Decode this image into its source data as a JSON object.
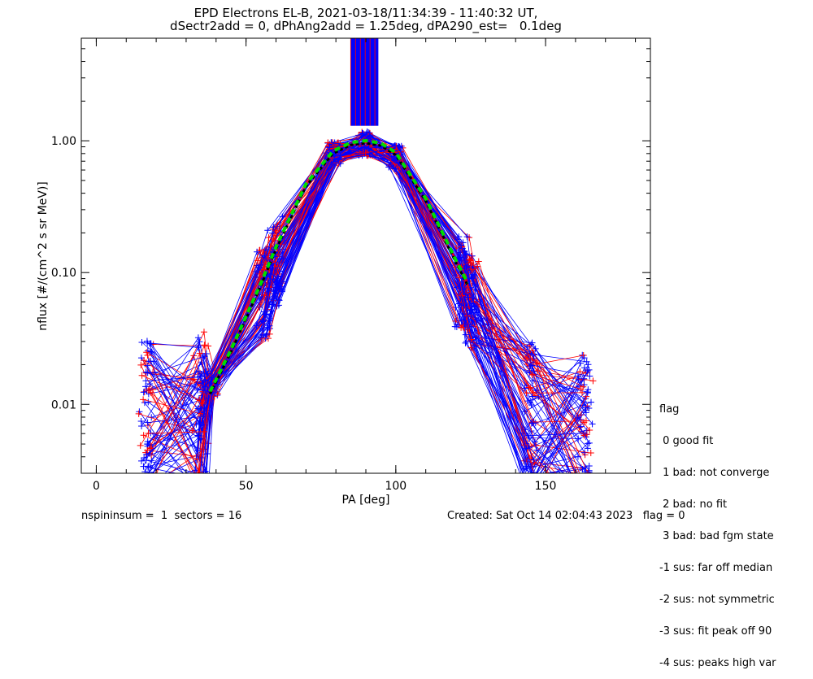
{
  "chart_data": {
    "type": "scatter",
    "title": "EPD Electrons EL-B, 2021-03-18/11:34:39 - 11:40:32 UT,",
    "subtitle": "dSectr2add = 0, dPhAng2add = 1.25deg, dPA290_est=   0.1deg",
    "xlabel": "PA [deg]",
    "ylabel": "nflux [#/(cm^2 s sr MeV)]",
    "xlim": [
      -5,
      185
    ],
    "ylim": [
      0.003,
      6.0
    ],
    "yscale": "log",
    "x_ticks": [
      {
        "value": 0,
        "label": "0"
      },
      {
        "value": 50,
        "label": "50"
      },
      {
        "value": 100,
        "label": "100"
      },
      {
        "value": 150,
        "label": "150"
      }
    ],
    "y_ticks": [
      {
        "value": 0.01,
        "label": "0.01"
      },
      {
        "value": 0.1,
        "label": "0.10"
      },
      {
        "value": 1.0,
        "label": "1.00"
      }
    ],
    "series_colors": {
      "red": "#ff0000",
      "blue": "#0000ff",
      "fit_green": "#00dd00",
      "fit_black": "#000000"
    },
    "typical_profile": {
      "pa": [
        17,
        35,
        38,
        56,
        60,
        79,
        90,
        100,
        122,
        125,
        145,
        163
      ],
      "flux": [
        0.008,
        0.009,
        0.013,
        0.07,
        0.12,
        0.8,
        0.95,
        0.75,
        0.085,
        0.06,
        0.008,
        0.006
      ]
    },
    "fit_curve": {
      "pa": [
        38,
        45,
        55,
        60,
        70,
        79,
        85,
        90,
        95,
        100,
        110,
        120,
        124
      ],
      "flux": [
        0.012,
        0.025,
        0.08,
        0.15,
        0.45,
        0.8,
        0.93,
        0.96,
        0.92,
        0.78,
        0.35,
        0.12,
        0.08
      ]
    },
    "spike_range": {
      "x_from": 85,
      "x_to": 94,
      "y_from": 1.3,
      "y_to": 6.0
    }
  },
  "legend": {
    "title": "flag",
    "items": [
      " 0 good fit",
      " 1 bad: not converge",
      " 2 bad: no fit",
      " 3 bad: bad fgm state",
      "-1 sus: far off median",
      "-2 sus: not symmetric",
      "-3 sus: fit peak off 90",
      "-4 sus: peaks high var"
    ]
  },
  "footer": {
    "left": "nspininsum =  1  sectors = 16",
    "right": "Created: Sat Oct 14 02:04:43 2023   flag = 0"
  }
}
